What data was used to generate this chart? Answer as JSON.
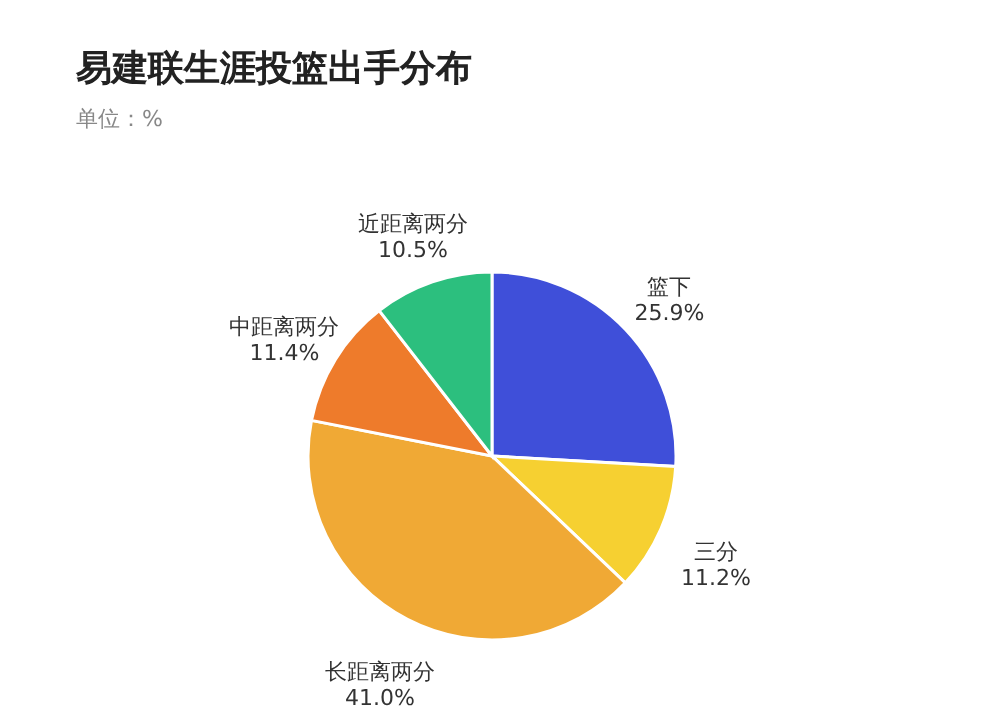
{
  "chart_data": {
    "type": "pie",
    "title": "易建联生涯投篮出手分布",
    "subtitle": "单位：%",
    "categories": [
      "篮下",
      "三分",
      "长距离两分",
      "中距离两分",
      "近距离两分"
    ],
    "values": [
      25.9,
      11.2,
      41.0,
      11.4,
      10.5
    ],
    "value_labels": [
      "25.9%",
      "11.2%",
      "41.0%",
      "11.4%",
      "10.5%"
    ],
    "colors": [
      "#3f4fd9",
      "#f6d031",
      "#f0a935",
      "#ee7b2b",
      "#2cbf7e"
    ]
  }
}
